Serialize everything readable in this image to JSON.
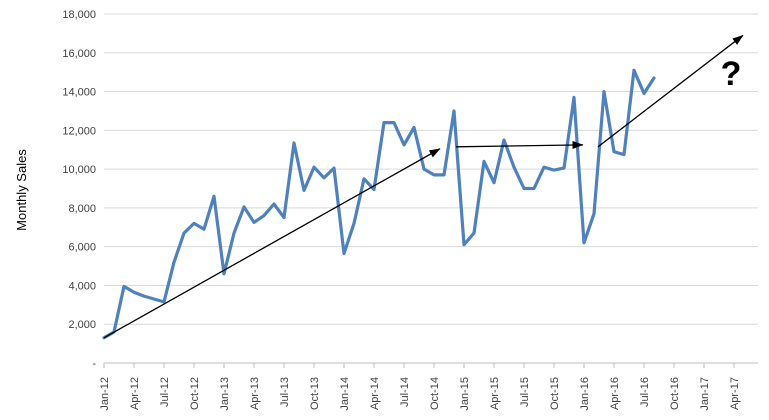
{
  "chart_data": {
    "type": "line",
    "title": "",
    "ylabel": "Monthly Sales",
    "xlabel": "",
    "ylim": [
      0,
      18000
    ],
    "grid": true,
    "legend": "none",
    "y_tick_labels": [
      "-",
      "2,000",
      "4,000",
      "6,000",
      "8,000",
      "10,000",
      "12,000",
      "14,000",
      "16,000",
      "18,000"
    ],
    "x_tick_labels": [
      "Jan-12",
      "Apr-12",
      "Jul-12",
      "Oct-12",
      "Jan-13",
      "Apr-13",
      "Jul-13",
      "Oct-13",
      "Jan-14",
      "Apr-14",
      "Jul-14",
      "Oct-14",
      "Jan-15",
      "Apr-15",
      "Jul-15",
      "Oct-15",
      "Jan-16",
      "Apr-16",
      "Jul-16",
      "Oct-16",
      "Jan-17",
      "Apr-17"
    ],
    "categories": [
      "Jan-12",
      "Feb-12",
      "Mar-12",
      "Apr-12",
      "May-12",
      "Jun-12",
      "Jul-12",
      "Aug-12",
      "Sep-12",
      "Oct-12",
      "Nov-12",
      "Dec-12",
      "Jan-13",
      "Feb-13",
      "Mar-13",
      "Apr-13",
      "May-13",
      "Jun-13",
      "Jul-13",
      "Aug-13",
      "Sep-13",
      "Oct-13",
      "Nov-13",
      "Dec-13",
      "Jan-14",
      "Feb-14",
      "Mar-14",
      "Apr-14",
      "May-14",
      "Jun-14",
      "Jul-14",
      "Aug-14",
      "Sep-14",
      "Oct-14",
      "Nov-14",
      "Dec-14",
      "Jan-15",
      "Feb-15",
      "Mar-15",
      "Apr-15",
      "May-15",
      "Jun-15",
      "Jul-15",
      "Aug-15",
      "Sep-15",
      "Oct-15",
      "Nov-15",
      "Dec-15",
      "Jan-16",
      "Feb-16",
      "Mar-16",
      "Apr-16",
      "May-16",
      "Jun-16",
      "Jul-16",
      "Aug-16"
    ],
    "series": [
      {
        "name": "Monthly Sales",
        "values": [
          1300,
          1600,
          3950,
          3650,
          3450,
          3300,
          3150,
          5200,
          6700,
          7200,
          6900,
          8600,
          4600,
          6700,
          8050,
          7250,
          7600,
          8200,
          7500,
          11350,
          8900,
          10100,
          9550,
          10050,
          5650,
          7200,
          9500,
          8950,
          12400,
          12400,
          11250,
          12150,
          10000,
          9700,
          9700,
          13000,
          6100,
          6700,
          10400,
          9300,
          11500,
          10100,
          9000,
          9000,
          10100,
          9950,
          10050,
          13700,
          6200,
          7700,
          14000,
          10900,
          10750,
          15100,
          13900,
          14700
        ]
      }
    ],
    "annotations": {
      "arrows": [
        {
          "name": "trend-arrow-rising-1",
          "from": [
            0,
            1300
          ],
          "to": [
            33.6,
            11050
          ]
        },
        {
          "name": "trend-arrow-flat",
          "from": [
            35.2,
            11150
          ],
          "to": [
            47.9,
            11250
          ]
        },
        {
          "name": "trend-arrow-rising-2",
          "from": [
            49.4,
            11150
          ],
          "to": [
            63.9,
            16900
          ]
        }
      ],
      "question_mark": {
        "text": "?",
        "at": [
          62.7,
          15000
        ]
      }
    },
    "colors": {
      "line": "#4F81BD",
      "arrow": "#000000",
      "gridline": "#D9D9D9",
      "axis": "#BFBFBF",
      "text": "#404040"
    }
  }
}
